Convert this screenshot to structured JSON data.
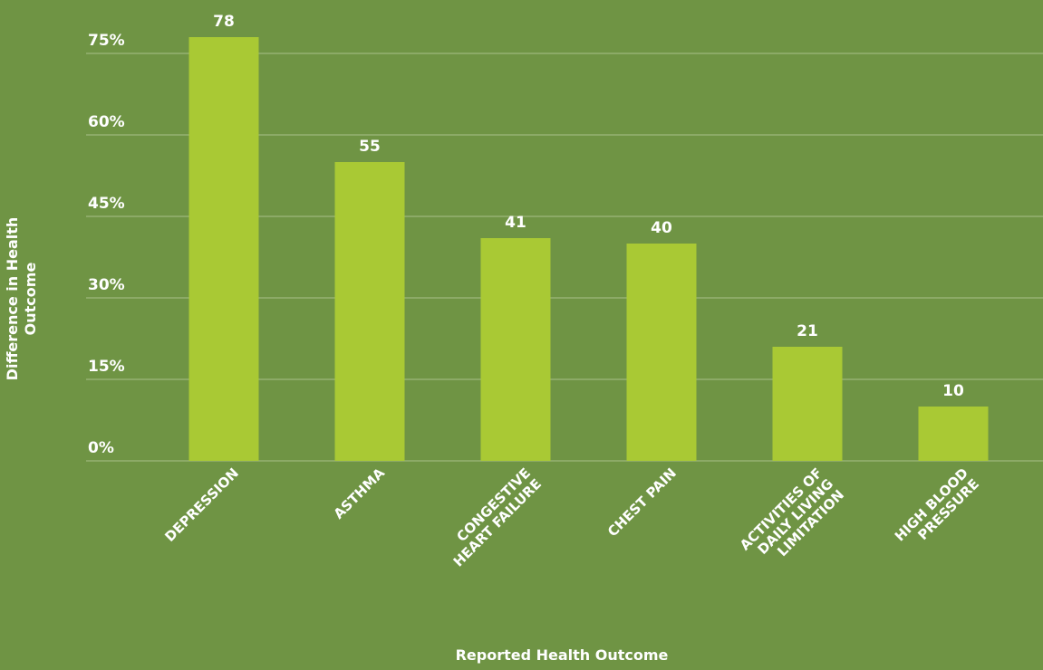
{
  "chart_data": {
    "type": "bar",
    "xlabel": "Reported Health Outcome",
    "ylabel": "Difference in Health Outcome",
    "categories": [
      "DEPRESSION",
      "ASTHMA",
      "CONGESTIVE HEART FAILURE",
      "CHEST PAIN",
      "ACTIVITIES OF DAILY LIVING LIMITATION",
      "HIGH BLOOD PRESSURE"
    ],
    "values": [
      78,
      55,
      41,
      40,
      21,
      10
    ],
    "color": "#a9c934",
    "ylim": [
      0,
      80
    ],
    "yticks": [
      {
        "value": 0,
        "label": "0%"
      },
      {
        "value": 15,
        "label": "15%"
      },
      {
        "value": 30,
        "label": "30%"
      },
      {
        "value": 45,
        "label": "45%"
      },
      {
        "value": 60,
        "label": "60%"
      },
      {
        "value": 75,
        "label": "75%"
      }
    ],
    "grid": true
  }
}
